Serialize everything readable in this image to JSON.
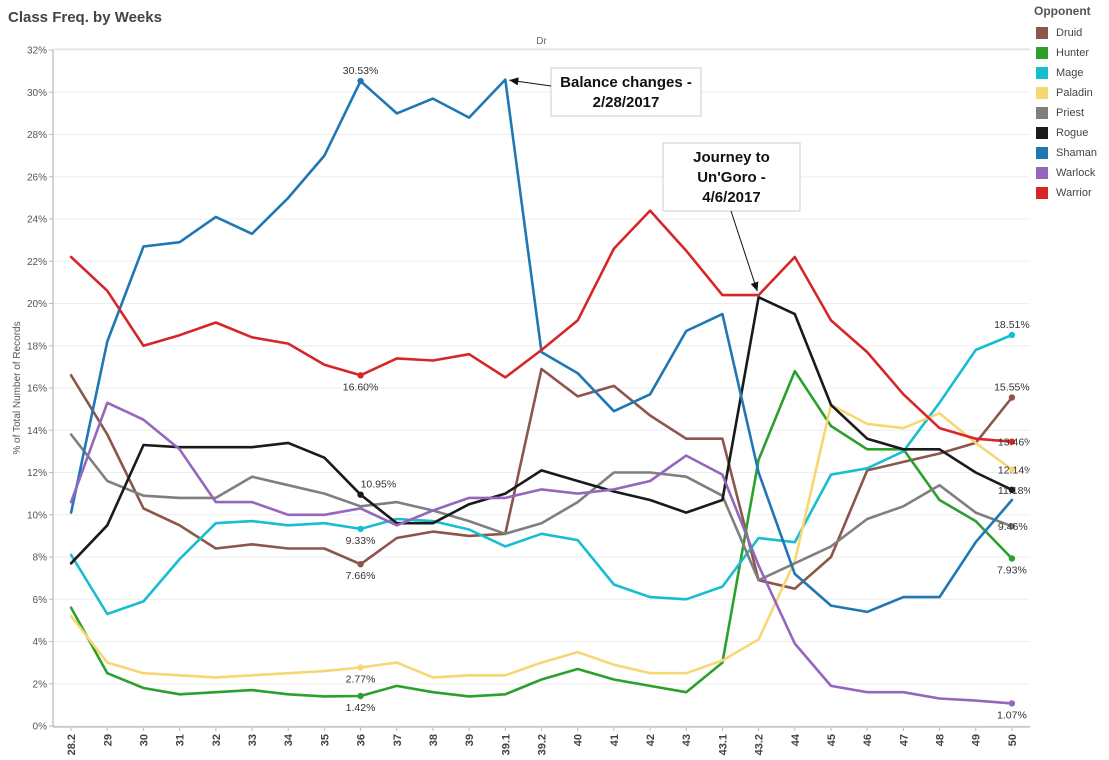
{
  "title": "Class Freq. by Weeks",
  "legend": {
    "title": "Opponent",
    "items": [
      {
        "name": "Druid",
        "color": "#8c564b"
      },
      {
        "name": "Hunter",
        "color": "#2ca02c"
      },
      {
        "name": "Mage",
        "color": "#17becf"
      },
      {
        "name": "Paladin",
        "color": "#f7d774"
      },
      {
        "name": "Priest",
        "color": "#7f7f7f"
      },
      {
        "name": "Rogue",
        "color": "#1a1a1a"
      },
      {
        "name": "Shaman",
        "color": "#1f77b4"
      },
      {
        "name": "Warlock",
        "color": "#9467bd"
      },
      {
        "name": "Warrior",
        "color": "#d62728"
      }
    ]
  },
  "chart_data": {
    "type": "line",
    "title": "Class Freq. by Weeks",
    "header": "Dr",
    "xlabel": "",
    "ylabel": "% of Total Number of Records",
    "ylim": [
      0,
      32
    ],
    "yticks": [
      "0%",
      "2%",
      "4%",
      "6%",
      "8%",
      "10%",
      "12%",
      "14%",
      "16%",
      "18%",
      "20%",
      "22%",
      "24%",
      "26%",
      "28%",
      "30%",
      "32%"
    ],
    "grid": true,
    "legend_position": "right",
    "categories": [
      "28.2",
      "29",
      "30",
      "31",
      "32",
      "33",
      "34",
      "35",
      "36",
      "37",
      "38",
      "39",
      "39.1",
      "39.2",
      "40",
      "41",
      "42",
      "43",
      "43.1",
      "43.2",
      "44",
      "45",
      "46",
      "47",
      "48",
      "49",
      "50"
    ],
    "series": [
      {
        "name": "Druid",
        "color": "#8c564b",
        "values": [
          16.6,
          13.8,
          10.3,
          9.5,
          8.4,
          8.6,
          8.4,
          8.4,
          7.66,
          8.9,
          9.2,
          9.0,
          9.1,
          16.9,
          15.6,
          16.1,
          14.7,
          13.6,
          13.6,
          6.9,
          6.5,
          8.0,
          12.1,
          12.5,
          12.9,
          13.4,
          15.55
        ]
      },
      {
        "name": "Hunter",
        "color": "#2ca02c",
        "values": [
          5.6,
          2.5,
          1.8,
          1.5,
          1.6,
          1.7,
          1.5,
          1.4,
          1.42,
          1.9,
          1.6,
          1.4,
          1.5,
          2.2,
          2.7,
          2.2,
          1.9,
          1.6,
          3.0,
          12.6,
          16.8,
          14.2,
          13.1,
          13.1,
          10.7,
          9.7,
          7.93
        ]
      },
      {
        "name": "Mage",
        "color": "#17becf",
        "values": [
          8.1,
          5.3,
          5.9,
          7.9,
          9.6,
          9.7,
          9.5,
          9.6,
          9.33,
          9.8,
          9.7,
          9.3,
          8.5,
          9.1,
          8.8,
          6.7,
          6.1,
          6.0,
          6.6,
          8.9,
          8.7,
          11.9,
          12.2,
          13.0,
          15.3,
          17.8,
          18.51
        ]
      },
      {
        "name": "Paladin",
        "color": "#f7d774",
        "values": [
          5.2,
          3.0,
          2.5,
          2.4,
          2.3,
          2.4,
          2.5,
          2.6,
          2.77,
          3.0,
          2.3,
          2.4,
          2.4,
          3.0,
          3.5,
          2.9,
          2.5,
          2.5,
          3.1,
          4.1,
          7.8,
          15.2,
          14.3,
          14.1,
          14.8,
          13.4,
          12.14
        ]
      },
      {
        "name": "Priest",
        "color": "#7f7f7f",
        "values": [
          13.8,
          11.6,
          10.9,
          10.8,
          10.8,
          11.8,
          11.4,
          11.0,
          10.4,
          10.6,
          10.2,
          9.7,
          9.1,
          9.6,
          10.6,
          12.0,
          12.0,
          11.8,
          10.9,
          6.9,
          7.7,
          8.5,
          9.8,
          10.4,
          11.4,
          10.1,
          9.46
        ]
      },
      {
        "name": "Rogue",
        "color": "#1a1a1a",
        "values": [
          7.7,
          9.5,
          13.3,
          13.2,
          13.2,
          13.2,
          13.4,
          12.7,
          10.95,
          9.6,
          9.6,
          10.5,
          11.0,
          12.1,
          11.6,
          11.1,
          10.7,
          10.1,
          10.7,
          20.3,
          19.5,
          15.2,
          13.6,
          13.1,
          13.1,
          12.0,
          11.18
        ]
      },
      {
        "name": "Shaman",
        "color": "#1f77b4",
        "values": [
          10.1,
          18.2,
          22.7,
          22.9,
          24.1,
          23.3,
          25.0,
          27.0,
          30.53,
          29.0,
          29.7,
          28.8,
          30.6,
          17.7,
          16.7,
          14.9,
          15.7,
          18.7,
          19.5,
          12.0,
          7.2,
          5.7,
          5.4,
          6.1,
          6.1,
          8.7,
          10.7
        ]
      },
      {
        "name": "Warlock",
        "color": "#9467bd",
        "values": [
          10.6,
          15.3,
          14.5,
          13.1,
          10.6,
          10.6,
          10.0,
          10.0,
          10.3,
          9.5,
          10.2,
          10.8,
          10.8,
          11.2,
          11.0,
          11.2,
          11.6,
          12.8,
          11.9,
          7.6,
          3.9,
          1.9,
          1.6,
          1.6,
          1.3,
          1.2,
          1.07
        ]
      },
      {
        "name": "Warrior",
        "color": "#d62728",
        "values": [
          22.2,
          20.6,
          18.0,
          18.5,
          19.1,
          18.4,
          18.1,
          17.1,
          16.6,
          17.4,
          17.3,
          17.6,
          16.5,
          17.8,
          19.2,
          22.6,
          24.4,
          22.5,
          20.4,
          20.4,
          22.2,
          19.2,
          17.7,
          15.7,
          14.1,
          13.6,
          13.46
        ]
      }
    ],
    "data_labels": [
      {
        "series": "Shaman",
        "index": 8,
        "text": "30.53%",
        "position": "above"
      },
      {
        "series": "Warrior",
        "index": 8,
        "text": "16.60%",
        "position": "below"
      },
      {
        "series": "Rogue",
        "index": 8,
        "text": "10.95%",
        "position": "above-right"
      },
      {
        "series": "Mage",
        "index": 8,
        "text": "9.33%",
        "position": "below"
      },
      {
        "series": "Druid",
        "index": 8,
        "text": "7.66%",
        "position": "below"
      },
      {
        "series": "Paladin",
        "index": 8,
        "text": "2.77%",
        "position": "below"
      },
      {
        "series": "Hunter",
        "index": 8,
        "text": "1.42%",
        "position": "below"
      },
      {
        "series": "Mage",
        "index": 26,
        "text": "18.51%",
        "position": "above"
      },
      {
        "series": "Druid",
        "index": 26,
        "text": "15.55%",
        "position": "above"
      },
      {
        "series": "Warrior",
        "index": 26,
        "text": "13.46%",
        "position": "right"
      },
      {
        "series": "Paladin",
        "index": 26,
        "text": "12.14%",
        "position": "right"
      },
      {
        "series": "Rogue",
        "index": 26,
        "text": "11.18%",
        "position": "right"
      },
      {
        "series": "Priest",
        "index": 26,
        "text": "9.46%",
        "position": "right"
      },
      {
        "series": "Hunter",
        "index": 26,
        "text": "7.93%",
        "position": "below"
      },
      {
        "series": "Warlock",
        "index": 26,
        "text": "1.07%",
        "position": "below"
      }
    ],
    "annotations": [
      {
        "lines": [
          "Balance changes -",
          "2/28/2017"
        ],
        "target_series": "Shaman",
        "target_index": 12
      },
      {
        "lines": [
          "Journey to",
          "Un'Goro -",
          "4/6/2017"
        ],
        "target_series": "Warrior",
        "target_index": 19
      }
    ]
  }
}
